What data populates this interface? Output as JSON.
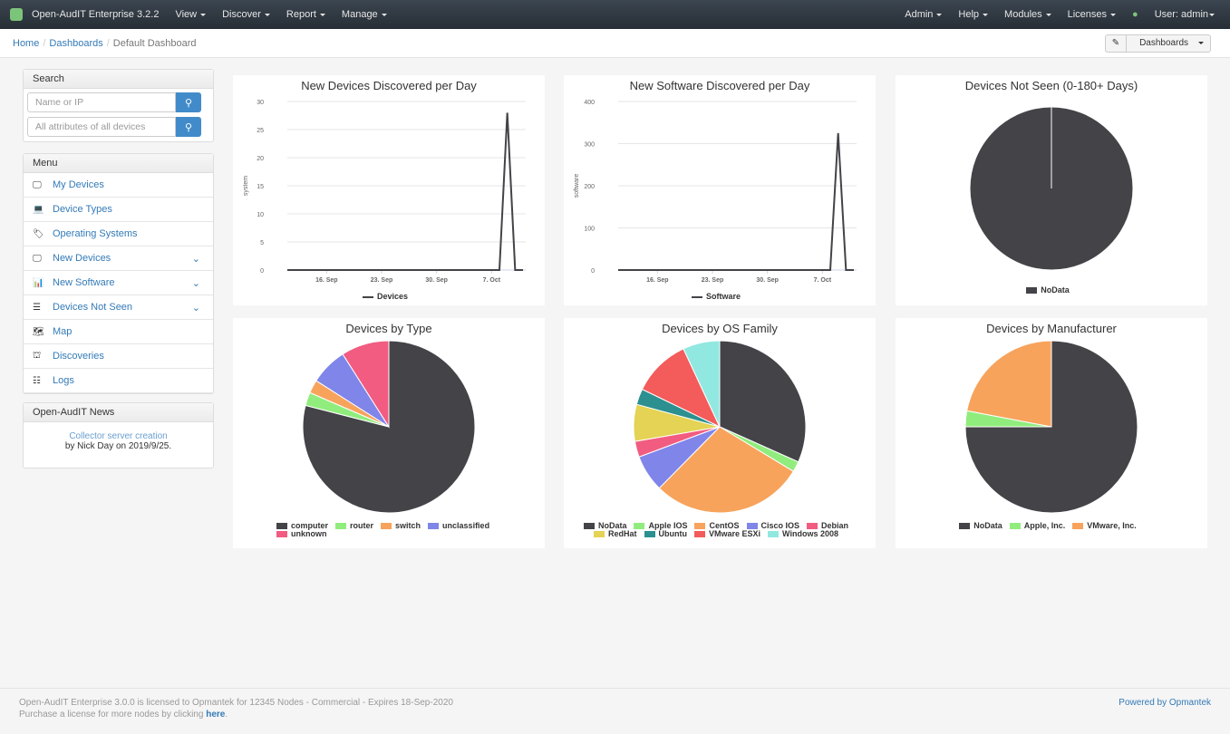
{
  "nav": {
    "brand": "Open-AudIT Enterprise 3.2.2",
    "left": [
      "View",
      "Discover",
      "Report",
      "Manage"
    ],
    "right": [
      "Admin",
      "Help",
      "Modules",
      "Licenses"
    ],
    "user": "User: admin"
  },
  "breadcrumb": {
    "home": "Home",
    "dashboards": "Dashboards",
    "current": "Default Dashboard",
    "dash_button": "Dashboards"
  },
  "search": {
    "title": "Search",
    "placeholder1": "Name or IP",
    "placeholder2": "All attributes of all devices"
  },
  "menu": {
    "title": "Menu",
    "items": [
      {
        "label": "My Devices",
        "icon": "monitor-icon",
        "glyph": "🖵",
        "expand": false
      },
      {
        "label": "Device Types",
        "icon": "laptop-icon",
        "glyph": "💻",
        "expand": false
      },
      {
        "label": "Operating Systems",
        "icon": "tags-icon",
        "glyph": "🏷",
        "expand": false
      },
      {
        "label": "New Devices",
        "icon": "monitor-icon",
        "glyph": "🖵",
        "expand": true
      },
      {
        "label": "New Software",
        "icon": "bar-chart-icon",
        "glyph": "📊",
        "expand": true
      },
      {
        "label": "Devices Not Seen",
        "icon": "server-icon",
        "glyph": "☰",
        "expand": true
      },
      {
        "label": "Map",
        "icon": "map-icon",
        "glyph": "🗺",
        "expand": false
      },
      {
        "label": "Discoveries",
        "icon": "binoculars-icon",
        "glyph": "⛫",
        "expand": false
      },
      {
        "label": "Logs",
        "icon": "list-icon",
        "glyph": "☷",
        "expand": false
      }
    ]
  },
  "news": {
    "title": "Open-AudIT News",
    "link": "Collector server creation",
    "byline": "by Nick Day on 2019/9/25."
  },
  "footer": {
    "line1": "Open-AudIT Enterprise 3.0.0 is licensed to Opmantek for 12345 Nodes - Commercial - Expires 18-Sep-2020",
    "line2": "Purchase a license for more nodes by clicking ",
    "here": "here",
    "dot": ".",
    "powered": "Powered by Opmantek"
  },
  "chart_data": [
    {
      "type": "line",
      "title": "New Devices Discovered per Day",
      "ylabel": "system",
      "ylim": [
        0,
        30
      ],
      "yticks": [
        0,
        5,
        10,
        15,
        20,
        25,
        30
      ],
      "xticks": [
        {
          "label": "16. Sep",
          "date": "2019-09-16"
        },
        {
          "label": "23. Sep",
          "date": "2019-09-23"
        },
        {
          "label": "30. Sep",
          "date": "2019-09-30"
        },
        {
          "label": "7. Oct",
          "date": "2019-10-07"
        }
      ],
      "x": [
        "2019-09-11",
        "2019-09-12",
        "2019-09-13",
        "2019-09-14",
        "2019-09-15",
        "2019-09-16",
        "2019-09-17",
        "2019-09-18",
        "2019-09-19",
        "2019-09-20",
        "2019-09-21",
        "2019-09-22",
        "2019-09-23",
        "2019-09-24",
        "2019-09-25",
        "2019-09-26",
        "2019-09-27",
        "2019-09-28",
        "2019-09-29",
        "2019-09-30",
        "2019-10-01",
        "2019-10-02",
        "2019-10-03",
        "2019-10-04",
        "2019-10-05",
        "2019-10-06",
        "2019-10-07",
        "2019-10-08",
        "2019-10-09",
        "2019-10-10",
        "2019-10-11"
      ],
      "series": [
        {
          "name": "Devices",
          "color": "#434348",
          "values": [
            0,
            0,
            0,
            0,
            0,
            0,
            0,
            0,
            0,
            0,
            0,
            0,
            0,
            0,
            0,
            0,
            0,
            0,
            0,
            0,
            0,
            0,
            0,
            0,
            0,
            0,
            0,
            0,
            28,
            0,
            0
          ]
        }
      ],
      "legend": "bottom",
      "grid": true
    },
    {
      "type": "line",
      "title": "New Software Discovered per Day",
      "ylabel": "software",
      "ylim": [
        0,
        400
      ],
      "yticks": [
        0,
        100,
        200,
        300,
        400
      ],
      "xticks": [
        {
          "label": "16. Sep",
          "date": "2019-09-16"
        },
        {
          "label": "23. Sep",
          "date": "2019-09-23"
        },
        {
          "label": "30. Sep",
          "date": "2019-09-30"
        },
        {
          "label": "7. Oct",
          "date": "2019-10-07"
        }
      ],
      "x": [
        "2019-09-11",
        "2019-09-12",
        "2019-09-13",
        "2019-09-14",
        "2019-09-15",
        "2019-09-16",
        "2019-09-17",
        "2019-09-18",
        "2019-09-19",
        "2019-09-20",
        "2019-09-21",
        "2019-09-22",
        "2019-09-23",
        "2019-09-24",
        "2019-09-25",
        "2019-09-26",
        "2019-09-27",
        "2019-09-28",
        "2019-09-29",
        "2019-09-30",
        "2019-10-01",
        "2019-10-02",
        "2019-10-03",
        "2019-10-04",
        "2019-10-05",
        "2019-10-06",
        "2019-10-07",
        "2019-10-08",
        "2019-10-09",
        "2019-10-10",
        "2019-10-11"
      ],
      "series": [
        {
          "name": "Software",
          "color": "#434348",
          "values": [
            0,
            0,
            0,
            0,
            0,
            0,
            0,
            0,
            0,
            0,
            0,
            0,
            0,
            0,
            0,
            0,
            0,
            0,
            0,
            0,
            0,
            0,
            0,
            0,
            0,
            0,
            0,
            0,
            325,
            0,
            0
          ]
        }
      ],
      "legend": "bottom",
      "grid": true
    },
    {
      "type": "pie",
      "title": "Devices Not Seen (0-180+ Days)",
      "legend": "bottom",
      "slices": [
        {
          "name": "NoData",
          "value": 100,
          "color": "#434348"
        }
      ]
    },
    {
      "type": "pie",
      "title": "Devices by Type",
      "legend": "bottom",
      "slices": [
        {
          "name": "computer",
          "value": 79,
          "color": "#434348"
        },
        {
          "name": "router",
          "value": 2.5,
          "color": "#90ed7d"
        },
        {
          "name": "switch",
          "value": 2.5,
          "color": "#f7a35c"
        },
        {
          "name": "unclassified",
          "value": 7,
          "color": "#8085e9"
        },
        {
          "name": "unknown",
          "value": 9,
          "color": "#f15c80"
        }
      ]
    },
    {
      "type": "pie",
      "title": "Devices by OS Family",
      "legend": "bottom",
      "slices": [
        {
          "name": "NoData",
          "value": 32,
          "color": "#434348"
        },
        {
          "name": "Apple IOS",
          "value": 2,
          "color": "#90ed7d"
        },
        {
          "name": "CentOS",
          "value": 29,
          "color": "#f7a35c"
        },
        {
          "name": "Cisco IOS",
          "value": 7,
          "color": "#8085e9"
        },
        {
          "name": "Debian",
          "value": 3,
          "color": "#f15c80"
        },
        {
          "name": "RedHat",
          "value": 7,
          "color": "#e4d354"
        },
        {
          "name": "Ubuntu",
          "value": 3,
          "color": "#2b908f"
        },
        {
          "name": "VMware ESXi",
          "value": 11,
          "color": "#f45b5b"
        },
        {
          "name": "Windows 2008",
          "value": 7,
          "color": "#91e8e1"
        }
      ]
    },
    {
      "type": "pie",
      "title": "Devices by Manufacturer",
      "legend": "bottom",
      "slices": [
        {
          "name": "NoData",
          "value": 75,
          "color": "#434348"
        },
        {
          "name": "Apple, Inc.",
          "value": 3,
          "color": "#90ed7d"
        },
        {
          "name": "VMware, Inc.",
          "value": 22,
          "color": "#f7a35c"
        }
      ]
    }
  ]
}
